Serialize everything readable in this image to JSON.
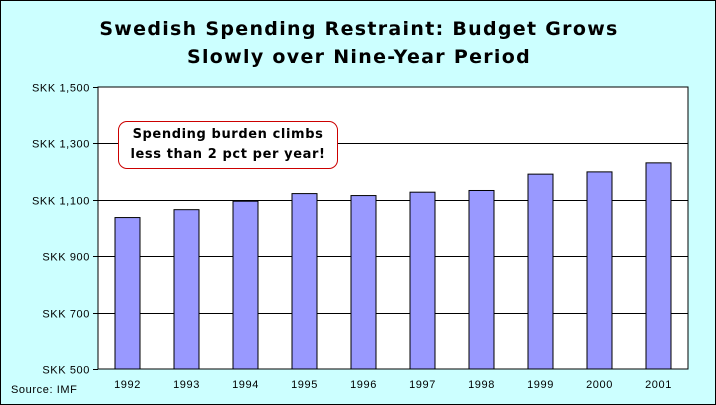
{
  "chart_data": {
    "type": "bar",
    "title_lines": [
      "Swedish Spending Restraint: Budget Grows",
      "Slowly over Nine-Year Period"
    ],
    "categories": [
      "1992",
      "1993",
      "1994",
      "1995",
      "1996",
      "1997",
      "1998",
      "1999",
      "2000",
      "2001"
    ],
    "values": [
      1037,
      1065,
      1095,
      1122,
      1115,
      1127,
      1133,
      1191,
      1199,
      1231
    ],
    "ylim": [
      500,
      1500
    ],
    "yticks": [
      500,
      700,
      900,
      1100,
      1300,
      1500
    ],
    "ytick_labels": [
      "SKK 500",
      "SKK 700",
      "SKK 900",
      "SKK 1,100",
      "SKK 1,300",
      "SKK 1,500"
    ],
    "xlabel": "",
    "ylabel": "",
    "grid": true,
    "legend": false,
    "bar_color": "#9999ff",
    "plot_background": "#ffffff",
    "chart_background": "#ccffff",
    "annotation_lines": [
      "Spending burden climbs",
      "less than 2 pct per year!"
    ],
    "annotation_border_color": "#cc0000",
    "source": "Source: IMF"
  }
}
